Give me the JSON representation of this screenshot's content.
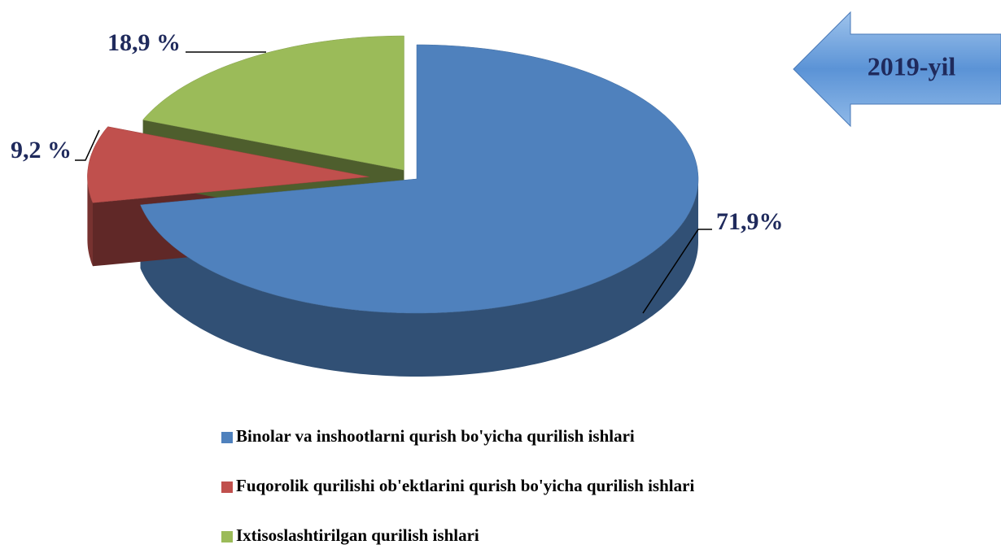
{
  "chart_data": {
    "type": "pie",
    "categories": [
      "Binolar va inshootlarni qurish bo'yicha qurilish ishlari",
      "Fuqorolik qurilishi ob'ektlarini qurish bo'yicha qurilish ishlari",
      "Ixtisoslashtirilgan qurilish ishlari"
    ],
    "values": [
      71.9,
      9.2,
      18.9
    ],
    "value_labels": [
      "71,9%",
      "9,2 %",
      "18,9 %"
    ],
    "colors": [
      "#4f81bd",
      "#c0504d",
      "#9bbb59"
    ],
    "annotation": "2019-yil",
    "legend": "bottom"
  }
}
